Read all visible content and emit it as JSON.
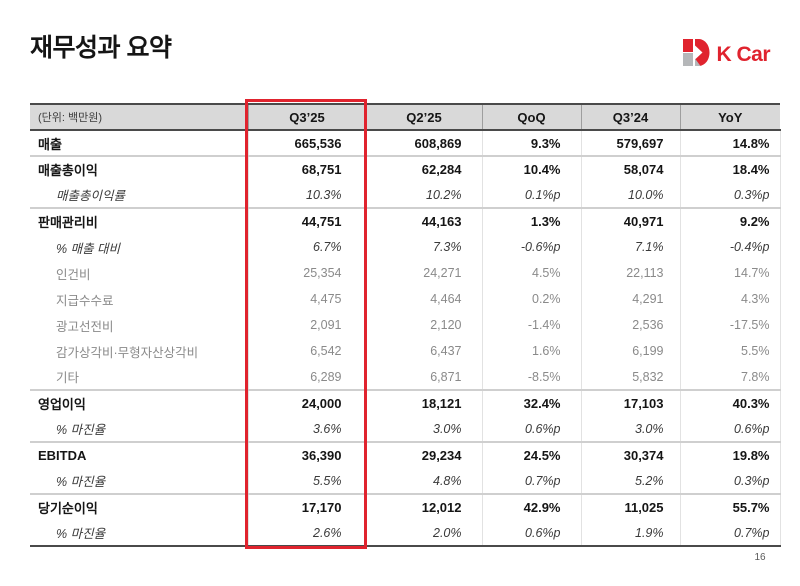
{
  "page": {
    "title": "재무성과 요약",
    "page_number": "16"
  },
  "logo": {
    "text": "K Car",
    "brand_red": "#e0232e",
    "brand_gray": "#b5b7b9"
  },
  "table": {
    "unit_label": "(단위: 백만원)",
    "columns": [
      "Q3’25",
      "Q2’25",
      "QoQ",
      "Q3’24",
      "YoY"
    ],
    "highlighted_column": "Q3’25",
    "highlight_color": "#e0232e",
    "rows": [
      {
        "label": "매출",
        "style": "bold",
        "sep_below": true,
        "values": [
          "665,536",
          "608,869",
          "9.3%",
          "579,697",
          "14.8%"
        ]
      },
      {
        "label": "매출총이익",
        "style": "bold",
        "sep_below": false,
        "values": [
          "68,751",
          "62,284",
          "10.4%",
          "58,074",
          "18.4%"
        ]
      },
      {
        "label": "매출총이익률",
        "style": "italic",
        "sep_below": true,
        "values": [
          "10.3%",
          "10.2%",
          "0.1%p",
          "10.0%",
          "0.3%p"
        ]
      },
      {
        "label": "판매관리비",
        "style": "bold",
        "sep_below": false,
        "values": [
          "44,751",
          "44,163",
          "1.3%",
          "40,971",
          "9.2%"
        ]
      },
      {
        "label": "% 매출 대비",
        "style": "italic",
        "sep_below": false,
        "values": [
          "6.7%",
          "7.3%",
          "-0.6%p",
          "7.1%",
          "-0.4%p"
        ]
      },
      {
        "label": "인건비",
        "style": "gray",
        "sep_below": false,
        "values": [
          "25,354",
          "24,271",
          "4.5%",
          "22,113",
          "14.7%"
        ]
      },
      {
        "label": "지급수수료",
        "style": "gray",
        "sep_below": false,
        "values": [
          "4,475",
          "4,464",
          "0.2%",
          "4,291",
          "4.3%"
        ]
      },
      {
        "label": "광고선전비",
        "style": "gray",
        "sep_below": false,
        "values": [
          "2,091",
          "2,120",
          "-1.4%",
          "2,536",
          "-17.5%"
        ]
      },
      {
        "label": "감가상각비·무형자산상각비",
        "style": "gray",
        "sep_below": false,
        "values": [
          "6,542",
          "6,437",
          "1.6%",
          "6,199",
          "5.5%"
        ]
      },
      {
        "label": "기타",
        "style": "gray",
        "sep_below": true,
        "values": [
          "6,289",
          "6,871",
          "-8.5%",
          "5,832",
          "7.8%"
        ]
      },
      {
        "label": "영업이익",
        "style": "bold",
        "sep_below": false,
        "values": [
          "24,000",
          "18,121",
          "32.4%",
          "17,103",
          "40.3%"
        ]
      },
      {
        "label": "% 마진율",
        "style": "italic",
        "sep_below": true,
        "values": [
          "3.6%",
          "3.0%",
          "0.6%p",
          "3.0%",
          "0.6%p"
        ]
      },
      {
        "label": "EBITDA",
        "style": "bold",
        "sep_below": false,
        "values": [
          "36,390",
          "29,234",
          "24.5%",
          "30,374",
          "19.8%"
        ]
      },
      {
        "label": "% 마진율",
        "style": "italic",
        "sep_below": true,
        "values": [
          "5.5%",
          "4.8%",
          "0.7%p",
          "5.2%",
          "0.3%p"
        ]
      },
      {
        "label": "당기순이익",
        "style": "bold",
        "sep_below": false,
        "values": [
          "17,170",
          "12,012",
          "42.9%",
          "11,025",
          "55.7%"
        ]
      },
      {
        "label": "% 마진율",
        "style": "italic",
        "sep_below": false,
        "values": [
          "2.6%",
          "2.0%",
          "0.6%p",
          "1.9%",
          "0.7%p"
        ]
      }
    ]
  }
}
